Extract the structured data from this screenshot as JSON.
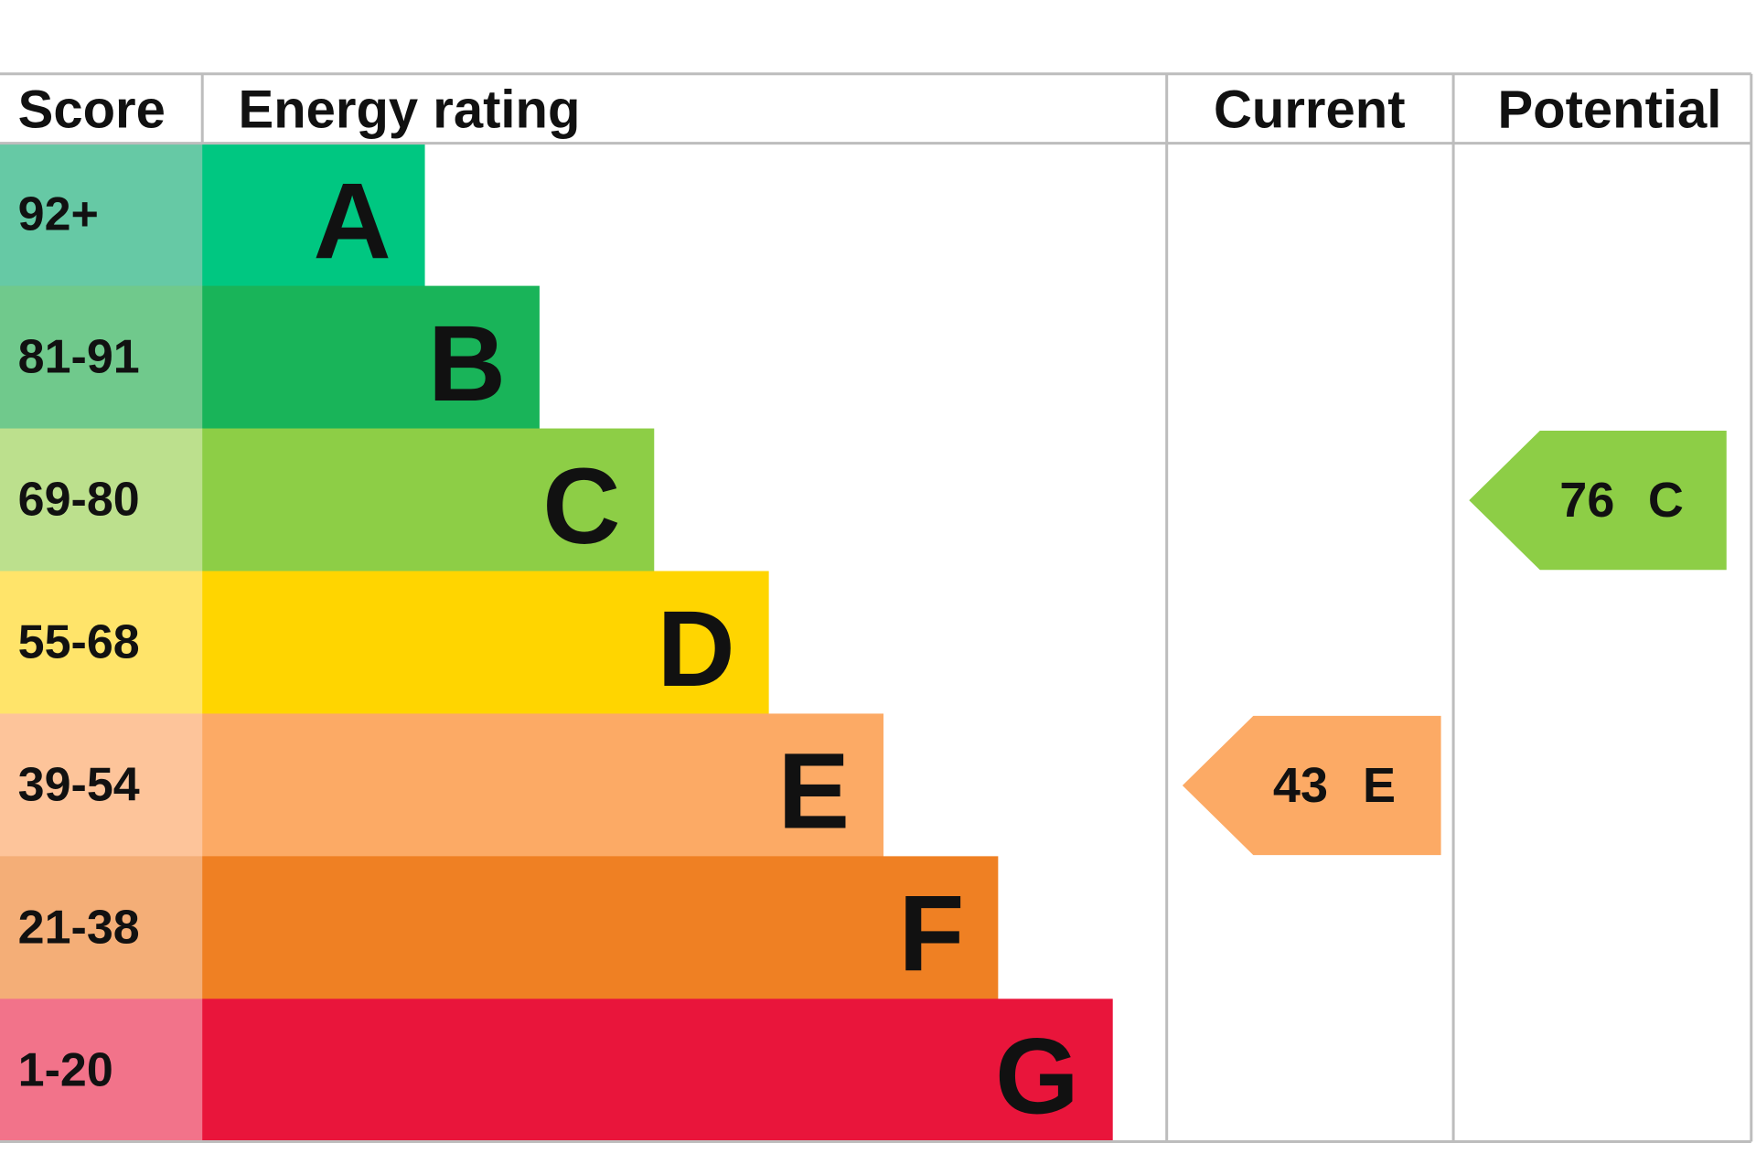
{
  "header": {
    "score": "Score",
    "energy_rating": "Energy rating",
    "current": "Current",
    "potential": "Potential"
  },
  "rows": [
    {
      "score": "92+",
      "rating": "A",
      "color": "#00c781",
      "score_color": "#66c9a5"
    },
    {
      "score": "81-91",
      "rating": "B",
      "color": "#19b459",
      "score_color": "#70c98c"
    },
    {
      "score": "69-80",
      "rating": "C",
      "color": "#8dce46",
      "score_color": "#bce08d"
    },
    {
      "score": "55-68",
      "rating": "D",
      "color": "#ffd500",
      "score_color": "#ffe46a"
    },
    {
      "score": "39-54",
      "rating": "E",
      "color": "#fcaa65",
      "score_color": "#fdc49a"
    },
    {
      "score": "21-38",
      "rating": "F",
      "color": "#ef8023",
      "score_color": "#f4ae77"
    },
    {
      "score": "1-20",
      "rating": "G",
      "color": "#e9153b",
      "score_color": "#f2738a"
    }
  ],
  "current": {
    "value": 43,
    "rating": "E"
  },
  "potential": {
    "value": 76,
    "rating": "C"
  }
}
